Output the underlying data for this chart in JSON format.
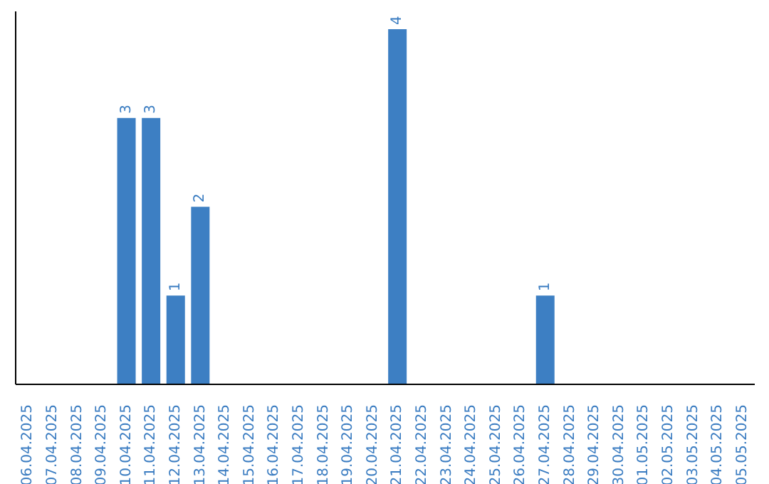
{
  "chart_data": {
    "type": "bar",
    "categories": [
      "06.04.2025",
      "07.04.2025",
      "08.04.2025",
      "09.04.2025",
      "10.04.2025",
      "11.04.2025",
      "12.04.2025",
      "13.04.2025",
      "14.04.2025",
      "15.04.2025",
      "16.04.2025",
      "17.04.2025",
      "18.04.2025",
      "19.04.2025",
      "20.04.2025",
      "21.04.2025",
      "22.04.2025",
      "23.04.2025",
      "24.04.2025",
      "25.04.2025",
      "26.04.2025",
      "27.04.2025",
      "28.04.2025",
      "29.04.2025",
      "30.04.2025",
      "01.05.2025",
      "02.05.2025",
      "03.05.2025",
      "04.05.2025",
      "05.05.2025"
    ],
    "values": [
      null,
      null,
      null,
      null,
      3,
      3,
      1,
      2,
      null,
      null,
      null,
      null,
      null,
      null,
      null,
      4,
      null,
      null,
      null,
      null,
      null,
      1,
      null,
      null,
      null,
      null,
      null,
      null,
      null,
      null
    ],
    "data_labels": true,
    "color": "#3d7fc3"
  }
}
